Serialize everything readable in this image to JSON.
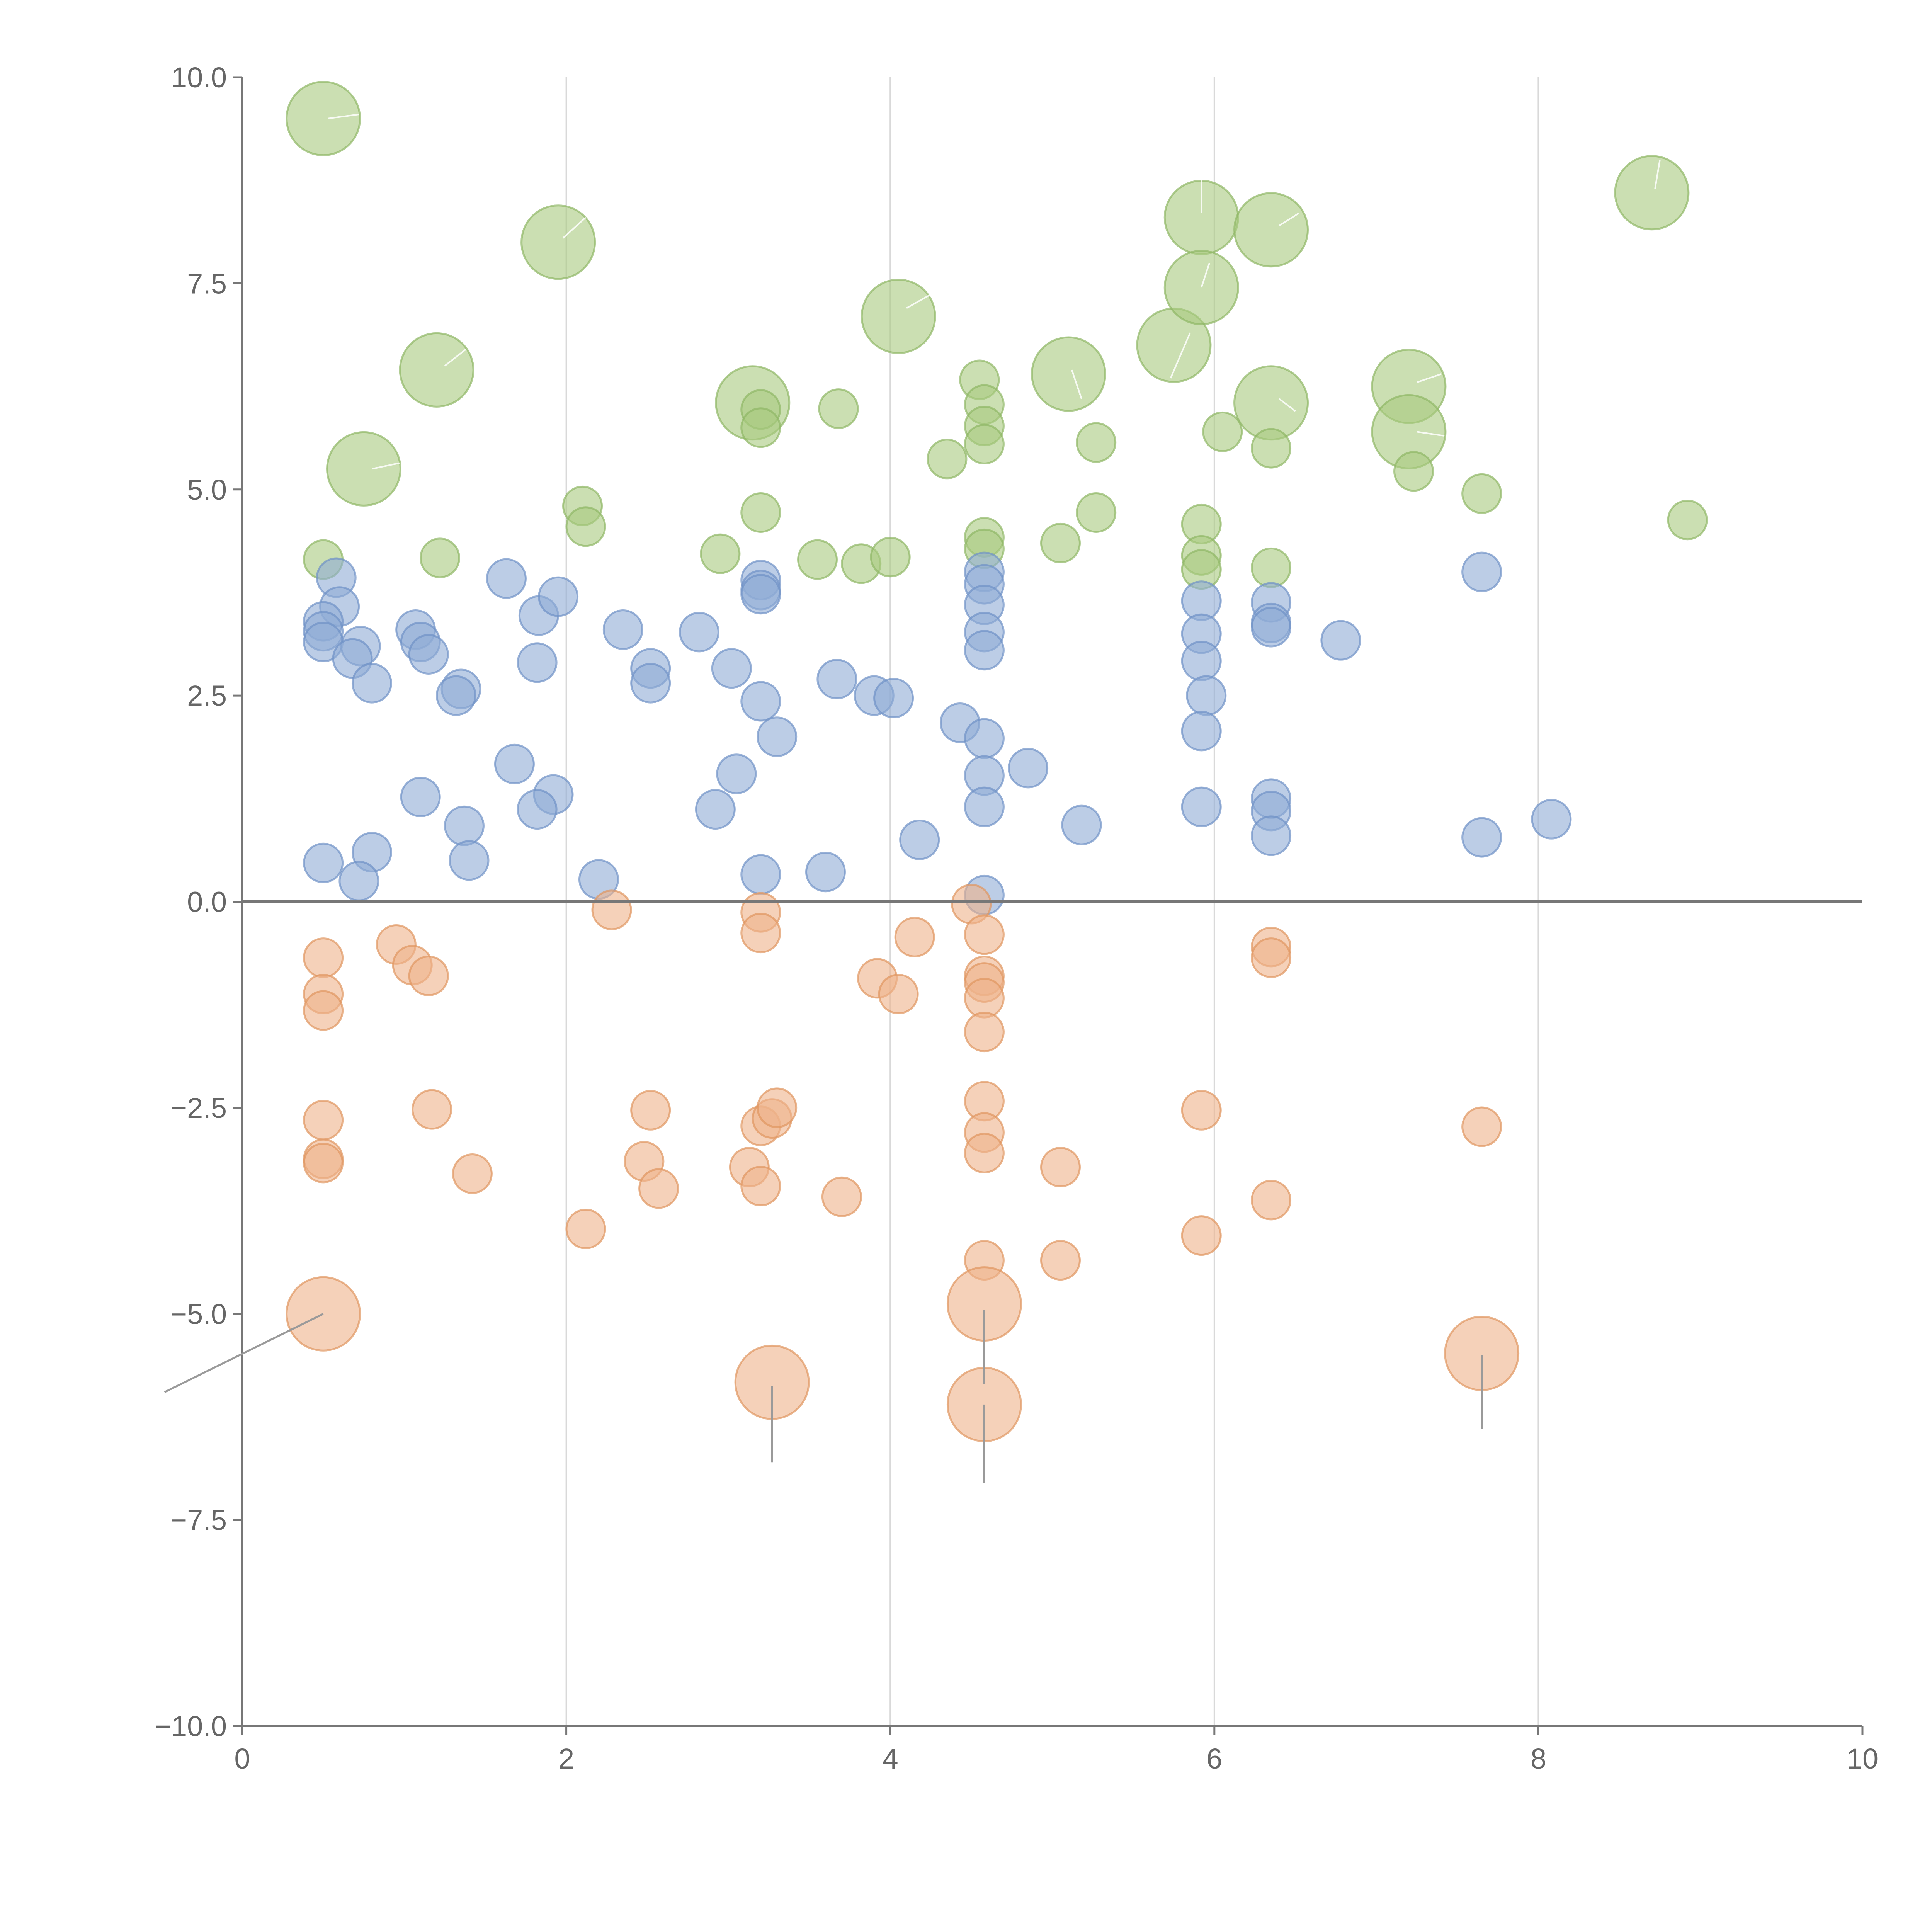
{
  "chart_data": {
    "type": "scatter",
    "variant": "bubble",
    "title": "",
    "xlabel": "",
    "ylabel": "",
    "xlim": [
      0,
      10
    ],
    "ylim": [
      -10,
      10
    ],
    "grid": {
      "x": true,
      "y": false
    },
    "reference_line_y": 0,
    "x_ticks": [
      0,
      2,
      4,
      6,
      8,
      10
    ],
    "x_tick_labels": [
      "0",
      "2",
      "4",
      "6",
      "8",
      "10"
    ],
    "y_ticks": [
      10,
      7.5,
      5,
      2.5,
      0,
      -2.5,
      -5,
      -7.5,
      -10
    ],
    "y_tick_labels": [
      "10.0",
      "7.5",
      "5.0",
      "2.5",
      "0.0",
      "−2.5",
      "−5.0",
      "−7.5",
      "−10.0"
    ],
    "series": [
      {
        "name": "green",
        "color": "#a9c97e",
        "stroke": "#8fb765",
        "points": [
          {
            "x": 0.5,
            "y": 9.5,
            "s": 2
          },
          {
            "x": 1.95,
            "y": 8.0,
            "s": 2
          },
          {
            "x": 1.2,
            "y": 6.45,
            "s": 2
          },
          {
            "x": 0.75,
            "y": 5.25,
            "s": 2
          },
          {
            "x": 3.15,
            "y": 6.05,
            "s": 2
          },
          {
            "x": 4.05,
            "y": 7.1,
            "s": 2
          },
          {
            "x": 5.1,
            "y": 6.4,
            "s": 2
          },
          {
            "x": 5.75,
            "y": 6.75,
            "s": 2
          },
          {
            "x": 5.92,
            "y": 8.3,
            "s": 2
          },
          {
            "x": 5.92,
            "y": 7.45,
            "s": 2
          },
          {
            "x": 6.35,
            "y": 8.15,
            "s": 2
          },
          {
            "x": 6.35,
            "y": 6.05,
            "s": 2
          },
          {
            "x": 7.2,
            "y": 6.25,
            "s": 2
          },
          {
            "x": 7.2,
            "y": 5.7,
            "s": 2
          },
          {
            "x": 8.7,
            "y": 8.6,
            "s": 2
          },
          {
            "x": 0.5,
            "y": 4.15,
            "s": 1
          },
          {
            "x": 1.22,
            "y": 4.17,
            "s": 1
          },
          {
            "x": 2.1,
            "y": 4.8,
            "s": 1
          },
          {
            "x": 2.12,
            "y": 4.55,
            "s": 1
          },
          {
            "x": 2.95,
            "y": 4.22,
            "s": 1
          },
          {
            "x": 3.2,
            "y": 4.72,
            "s": 1
          },
          {
            "x": 3.2,
            "y": 5.97,
            "s": 1
          },
          {
            "x": 3.2,
            "y": 5.75,
            "s": 1
          },
          {
            "x": 3.55,
            "y": 4.15,
            "s": 1
          },
          {
            "x": 3.68,
            "y": 5.98,
            "s": 1
          },
          {
            "x": 3.82,
            "y": 4.1,
            "s": 1
          },
          {
            "x": 4.0,
            "y": 4.18,
            "s": 1
          },
          {
            "x": 4.35,
            "y": 5.37,
            "s": 1
          },
          {
            "x": 4.55,
            "y": 6.33,
            "s": 1
          },
          {
            "x": 4.58,
            "y": 6.03,
            "s": 1
          },
          {
            "x": 4.58,
            "y": 5.77,
            "s": 1
          },
          {
            "x": 4.58,
            "y": 5.55,
            "s": 1
          },
          {
            "x": 4.58,
            "y": 4.42,
            "s": 1
          },
          {
            "x": 4.58,
            "y": 4.28,
            "s": 1
          },
          {
            "x": 5.05,
            "y": 4.35,
            "s": 1
          },
          {
            "x": 5.27,
            "y": 5.57,
            "s": 1
          },
          {
            "x": 5.27,
            "y": 4.72,
            "s": 1
          },
          {
            "x": 5.92,
            "y": 4.58,
            "s": 1
          },
          {
            "x": 5.92,
            "y": 4.2,
            "s": 1
          },
          {
            "x": 5.92,
            "y": 4.03,
            "s": 1
          },
          {
            "x": 6.05,
            "y": 5.7,
            "s": 1
          },
          {
            "x": 6.35,
            "y": 5.5,
            "s": 1
          },
          {
            "x": 6.35,
            "y": 4.05,
            "s": 1
          },
          {
            "x": 7.23,
            "y": 5.22,
            "s": 1
          },
          {
            "x": 7.65,
            "y": 4.95,
            "s": 1
          },
          {
            "x": 8.92,
            "y": 4.63,
            "s": 1
          }
        ]
      },
      {
        "name": "blue",
        "color": "#8fabd6",
        "stroke": "#6f91c6",
        "points": [
          {
            "x": 0.58,
            "y": 3.93,
            "s": 1
          },
          {
            "x": 0.6,
            "y": 3.58,
            "s": 1
          },
          {
            "x": 0.5,
            "y": 3.4,
            "s": 1
          },
          {
            "x": 0.5,
            "y": 3.28,
            "s": 1
          },
          {
            "x": 0.5,
            "y": 3.15,
            "s": 1
          },
          {
            "x": 0.73,
            "y": 3.1,
            "s": 1
          },
          {
            "x": 0.68,
            "y": 2.95,
            "s": 1
          },
          {
            "x": 0.8,
            "y": 2.65,
            "s": 1
          },
          {
            "x": 1.07,
            "y": 3.3,
            "s": 1
          },
          {
            "x": 1.1,
            "y": 3.15,
            "s": 1
          },
          {
            "x": 1.15,
            "y": 3.0,
            "s": 1
          },
          {
            "x": 1.35,
            "y": 2.58,
            "s": 1
          },
          {
            "x": 1.32,
            "y": 2.5,
            "s": 1
          },
          {
            "x": 1.63,
            "y": 3.92,
            "s": 1
          },
          {
            "x": 1.83,
            "y": 3.47,
            "s": 1
          },
          {
            "x": 1.95,
            "y": 3.7,
            "s": 1
          },
          {
            "x": 1.82,
            "y": 2.9,
            "s": 1
          },
          {
            "x": 1.68,
            "y": 1.67,
            "s": 1
          },
          {
            "x": 1.92,
            "y": 1.3,
            "s": 1
          },
          {
            "x": 1.82,
            "y": 1.12,
            "s": 1
          },
          {
            "x": 1.1,
            "y": 1.27,
            "s": 1
          },
          {
            "x": 1.37,
            "y": 0.92,
            "s": 1
          },
          {
            "x": 1.4,
            "y": 0.5,
            "s": 1
          },
          {
            "x": 0.8,
            "y": 0.6,
            "s": 1
          },
          {
            "x": 0.5,
            "y": 0.47,
            "s": 1
          },
          {
            "x": 0.72,
            "y": 0.25,
            "s": 1
          },
          {
            "x": 2.35,
            "y": 3.3,
            "s": 1
          },
          {
            "x": 2.52,
            "y": 2.83,
            "s": 1
          },
          {
            "x": 2.52,
            "y": 2.65,
            "s": 1
          },
          {
            "x": 2.82,
            "y": 3.27,
            "s": 1
          },
          {
            "x": 3.02,
            "y": 2.83,
            "s": 1
          },
          {
            "x": 2.2,
            "y": 0.27,
            "s": 1
          },
          {
            "x": 2.92,
            "y": 1.12,
            "s": 1
          },
          {
            "x": 3.05,
            "y": 1.55,
            "s": 1
          },
          {
            "x": 3.2,
            "y": 3.9,
            "s": 1
          },
          {
            "x": 3.2,
            "y": 3.78,
            "s": 1
          },
          {
            "x": 3.2,
            "y": 3.73,
            "s": 1
          },
          {
            "x": 3.2,
            "y": 2.43,
            "s": 1
          },
          {
            "x": 3.3,
            "y": 2.0,
            "s": 1
          },
          {
            "x": 3.2,
            "y": 0.33,
            "s": 1
          },
          {
            "x": 3.6,
            "y": 0.36,
            "s": 1
          },
          {
            "x": 3.67,
            "y": 2.7,
            "s": 1
          },
          {
            "x": 3.9,
            "y": 2.5,
            "s": 1
          },
          {
            "x": 4.02,
            "y": 2.47,
            "s": 1
          },
          {
            "x": 4.18,
            "y": 0.75,
            "s": 1
          },
          {
            "x": 4.43,
            "y": 2.17,
            "s": 1
          },
          {
            "x": 4.58,
            "y": 4.0,
            "s": 1
          },
          {
            "x": 4.58,
            "y": 3.85,
            "s": 1
          },
          {
            "x": 4.58,
            "y": 3.6,
            "s": 1
          },
          {
            "x": 4.58,
            "y": 3.27,
            "s": 1
          },
          {
            "x": 4.58,
            "y": 3.05,
            "s": 1
          },
          {
            "x": 4.58,
            "y": 1.98,
            "s": 1
          },
          {
            "x": 4.58,
            "y": 1.53,
            "s": 1
          },
          {
            "x": 4.58,
            "y": 1.15,
            "s": 1
          },
          {
            "x": 4.58,
            "y": 0.08,
            "s": 1
          },
          {
            "x": 4.85,
            "y": 1.62,
            "s": 1
          },
          {
            "x": 5.18,
            "y": 0.93,
            "s": 1
          },
          {
            "x": 5.92,
            "y": 3.65,
            "s": 1
          },
          {
            "x": 5.92,
            "y": 3.25,
            "s": 1
          },
          {
            "x": 5.92,
            "y": 2.92,
            "s": 1
          },
          {
            "x": 5.95,
            "y": 2.5,
            "s": 1
          },
          {
            "x": 5.92,
            "y": 2.07,
            "s": 1
          },
          {
            "x": 5.92,
            "y": 1.15,
            "s": 1
          },
          {
            "x": 6.35,
            "y": 3.63,
            "s": 1
          },
          {
            "x": 6.35,
            "y": 3.38,
            "s": 1
          },
          {
            "x": 6.35,
            "y": 3.33,
            "s": 1
          },
          {
            "x": 6.35,
            "y": 1.25,
            "s": 1
          },
          {
            "x": 6.35,
            "y": 1.1,
            "s": 1
          },
          {
            "x": 6.35,
            "y": 0.8,
            "s": 1
          },
          {
            "x": 6.78,
            "y": 3.17,
            "s": 1
          },
          {
            "x": 7.65,
            "y": 4.0,
            "s": 1
          },
          {
            "x": 7.65,
            "y": 0.78,
            "s": 1
          },
          {
            "x": 8.08,
            "y": 1.0,
            "s": 1
          }
        ]
      },
      {
        "name": "orange",
        "color": "#eeb38a",
        "stroke": "#e0955f",
        "points": [
          {
            "x": 0.5,
            "y": -0.68,
            "s": 1
          },
          {
            "x": 0.5,
            "y": -1.12,
            "s": 1
          },
          {
            "x": 0.5,
            "y": -1.32,
            "s": 1
          },
          {
            "x": 0.5,
            "y": -2.65,
            "s": 1
          },
          {
            "x": 0.5,
            "y": -3.12,
            "s": 1
          },
          {
            "x": 0.5,
            "y": -3.17,
            "s": 1
          },
          {
            "x": 0.95,
            "y": -0.52,
            "s": 1
          },
          {
            "x": 1.05,
            "y": -0.77,
            "s": 1
          },
          {
            "x": 1.15,
            "y": -0.9,
            "s": 1
          },
          {
            "x": 1.17,
            "y": -2.52,
            "s": 1
          },
          {
            "x": 1.42,
            "y": -3.3,
            "s": 1
          },
          {
            "x": 2.12,
            "y": -3.97,
            "s": 1
          },
          {
            "x": 2.28,
            "y": -0.1,
            "s": 1
          },
          {
            "x": 2.48,
            "y": -3.15,
            "s": 1
          },
          {
            "x": 2.52,
            "y": -2.53,
            "s": 1
          },
          {
            "x": 2.57,
            "y": -3.48,
            "s": 1
          },
          {
            "x": 3.13,
            "y": -3.22,
            "s": 1
          },
          {
            "x": 3.2,
            "y": -0.13,
            "s": 1
          },
          {
            "x": 3.2,
            "y": -0.38,
            "s": 1
          },
          {
            "x": 3.2,
            "y": -2.72,
            "s": 1
          },
          {
            "x": 3.27,
            "y": -2.63,
            "s": 1
          },
          {
            "x": 3.3,
            "y": -2.5,
            "s": 1
          },
          {
            "x": 3.2,
            "y": -3.45,
            "s": 1
          },
          {
            "x": 3.7,
            "y": -3.58,
            "s": 1
          },
          {
            "x": 3.92,
            "y": -0.93,
            "s": 1
          },
          {
            "x": 4.05,
            "y": -1.12,
            "s": 1
          },
          {
            "x": 4.15,
            "y": -0.43,
            "s": 1
          },
          {
            "x": 4.5,
            "y": -0.03,
            "s": 1
          },
          {
            "x": 4.58,
            "y": -0.4,
            "s": 1
          },
          {
            "x": 4.58,
            "y": -0.9,
            "s": 1
          },
          {
            "x": 4.58,
            "y": -0.98,
            "s": 1
          },
          {
            "x": 4.58,
            "y": -1.17,
            "s": 1
          },
          {
            "x": 4.58,
            "y": -1.58,
            "s": 1
          },
          {
            "x": 4.58,
            "y": -2.42,
            "s": 1
          },
          {
            "x": 4.58,
            "y": -2.8,
            "s": 1
          },
          {
            "x": 4.58,
            "y": -3.05,
            "s": 1
          },
          {
            "x": 4.58,
            "y": -4.35,
            "s": 1
          },
          {
            "x": 5.05,
            "y": -3.22,
            "s": 1
          },
          {
            "x": 5.05,
            "y": -4.35,
            "s": 1
          },
          {
            "x": 5.92,
            "y": -2.53,
            "s": 1
          },
          {
            "x": 5.92,
            "y": -4.05,
            "s": 1
          },
          {
            "x": 6.35,
            "y": -0.55,
            "s": 1
          },
          {
            "x": 6.35,
            "y": -0.68,
            "s": 1
          },
          {
            "x": 6.35,
            "y": -3.62,
            "s": 1
          },
          {
            "x": 7.65,
            "y": -2.73,
            "s": 1
          },
          {
            "x": 0.5,
            "y": -5.0,
            "s": 2
          },
          {
            "x": 3.27,
            "y": -5.83,
            "s": 2
          },
          {
            "x": 4.58,
            "y": -4.88,
            "s": 2
          },
          {
            "x": 4.58,
            "y": -6.1,
            "s": 2
          },
          {
            "x": 7.65,
            "y": -5.48,
            "s": 2
          }
        ]
      }
    ]
  },
  "leader_lines_white": [
    [
      0.53,
      9.5,
      0.72,
      9.55
    ],
    [
      1.98,
      8.05,
      2.12,
      8.3
    ],
    [
      1.25,
      6.5,
      1.38,
      6.7
    ],
    [
      0.8,
      5.25,
      0.97,
      5.32
    ],
    [
      4.1,
      7.2,
      4.28,
      7.4
    ],
    [
      5.12,
      6.45,
      5.18,
      6.1
    ],
    [
      5.73,
      6.35,
      5.85,
      6.9
    ],
    [
      5.92,
      8.35,
      5.92,
      8.75
    ],
    [
      5.92,
      7.45,
      5.97,
      7.75
    ],
    [
      6.4,
      8.2,
      6.52,
      8.35
    ],
    [
      6.4,
      6.1,
      6.5,
      5.95
    ],
    [
      7.25,
      6.3,
      7.4,
      6.4
    ],
    [
      7.25,
      5.7,
      7.42,
      5.65
    ],
    [
      8.72,
      8.65,
      8.75,
      9.0
    ]
  ],
  "leader_lines_grey": [
    [
      0.5,
      -5.0,
      -0.48,
      -5.95
    ],
    [
      3.27,
      -5.88,
      3.27,
      -6.8
    ],
    [
      4.58,
      -4.95,
      4.58,
      -5.85
    ],
    [
      4.58,
      -6.1,
      4.58,
      -7.05
    ],
    [
      7.65,
      -5.5,
      7.65,
      -6.4
    ]
  ]
}
